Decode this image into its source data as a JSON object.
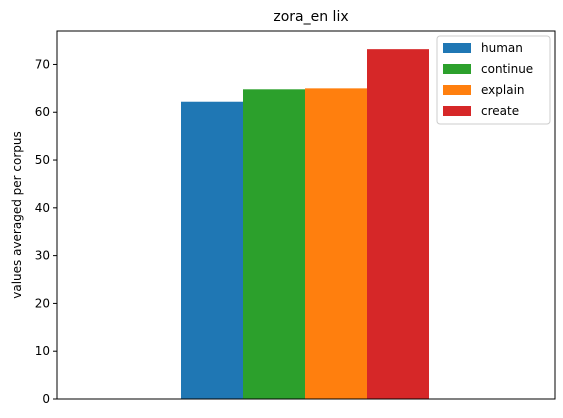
{
  "chart_data": {
    "type": "bar",
    "title": "zora_en lix",
    "xlabel": "",
    "ylabel": "values averaged per corpus",
    "ylim": [
      0,
      77
    ],
    "yticks": [
      0,
      10,
      20,
      30,
      40,
      50,
      60,
      70
    ],
    "grid": false,
    "legend_position": "top-right",
    "series": [
      {
        "name": "human",
        "value": 62.2,
        "color": "#1f77b4"
      },
      {
        "name": "continue",
        "value": 64.8,
        "color": "#2ca02c"
      },
      {
        "name": "explain",
        "value": 65.0,
        "color": "#ff7f0e"
      },
      {
        "name": "create",
        "value": 73.2,
        "color": "#d62728"
      }
    ]
  }
}
